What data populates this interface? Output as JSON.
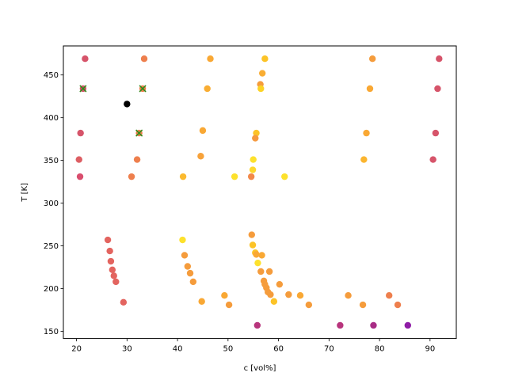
{
  "chart_data": {
    "type": "scatter",
    "title": "",
    "xlabel": "c [vol%]",
    "ylabel": "T [K]",
    "xlim": [
      17.4,
      95.2
    ],
    "ylim": [
      141.6,
      484.0
    ],
    "xticks": [
      20,
      30,
      40,
      50,
      60,
      70,
      80,
      90
    ],
    "yticks": [
      150,
      200,
      250,
      300,
      350,
      400,
      450
    ],
    "grid": false,
    "legend": "none",
    "points": [
      {
        "x": 21.7,
        "y": 469,
        "color": "#d6546a"
      },
      {
        "x": 33.4,
        "y": 469,
        "color": "#ee7f4d"
      },
      {
        "x": 46.5,
        "y": 469,
        "color": "#f9a834"
      },
      {
        "x": 57.3,
        "y": 469,
        "color": "#fcc327"
      },
      {
        "x": 78.6,
        "y": 469,
        "color": "#f59c3c"
      },
      {
        "x": 91.8,
        "y": 469,
        "color": "#d6546a"
      },
      {
        "x": 56.8,
        "y": 452,
        "color": "#f9ad33"
      },
      {
        "x": 21.3,
        "y": 434,
        "color": "#d6546a"
      },
      {
        "x": 33.1,
        "y": 434,
        "color": "#ee7f4d"
      },
      {
        "x": 45.9,
        "y": 434,
        "color": "#f9ad33"
      },
      {
        "x": 56.4,
        "y": 439,
        "color": "#f59c3c"
      },
      {
        "x": 56.5,
        "y": 434,
        "color": "#fcd325"
      },
      {
        "x": 78.1,
        "y": 434,
        "color": "#f9a834"
      },
      {
        "x": 91.5,
        "y": 434,
        "color": "#d6546a"
      },
      {
        "x": 30.0,
        "y": 416,
        "color": "#000000"
      },
      {
        "x": 45.0,
        "y": 385,
        "color": "#f9a834"
      },
      {
        "x": 20.8,
        "y": 382,
        "color": "#d6546a"
      },
      {
        "x": 32.4,
        "y": 382,
        "color": "#ee7f4d"
      },
      {
        "x": 55.6,
        "y": 382,
        "color": "#fcc327"
      },
      {
        "x": 55.4,
        "y": 376,
        "color": "#f5993f"
      },
      {
        "x": 77.4,
        "y": 382,
        "color": "#f9a834"
      },
      {
        "x": 91.1,
        "y": 382,
        "color": "#d6546a"
      },
      {
        "x": 44.6,
        "y": 355,
        "color": "#f7a23a"
      },
      {
        "x": 20.5,
        "y": 351,
        "color": "#dd5e63"
      },
      {
        "x": 32.0,
        "y": 351,
        "color": "#ee7f4d"
      },
      {
        "x": 55.0,
        "y": 351,
        "color": "#fde12c"
      },
      {
        "x": 76.9,
        "y": 351,
        "color": "#fbb52f"
      },
      {
        "x": 90.6,
        "y": 351,
        "color": "#d6546a"
      },
      {
        "x": 54.9,
        "y": 339,
        "color": "#fdd82d"
      },
      {
        "x": 20.7,
        "y": 331,
        "color": "#d94e6e"
      },
      {
        "x": 30.9,
        "y": 331,
        "color": "#ee7f4d"
      },
      {
        "x": 41.1,
        "y": 331,
        "color": "#fbba2f"
      },
      {
        "x": 51.3,
        "y": 331,
        "color": "#fde12c"
      },
      {
        "x": 54.6,
        "y": 331,
        "color": "#f2894a"
      },
      {
        "x": 61.2,
        "y": 331,
        "color": "#fde12c"
      },
      {
        "x": 26.2,
        "y": 257,
        "color": "#e3645f"
      },
      {
        "x": 26.6,
        "y": 244,
        "color": "#e3645f"
      },
      {
        "x": 26.8,
        "y": 232,
        "color": "#e3645f"
      },
      {
        "x": 27.1,
        "y": 222,
        "color": "#e3645f"
      },
      {
        "x": 27.4,
        "y": 215,
        "color": "#e3645f"
      },
      {
        "x": 27.8,
        "y": 208,
        "color": "#e3645f"
      },
      {
        "x": 29.3,
        "y": 184,
        "color": "#e3645f"
      },
      {
        "x": 41.0,
        "y": 257,
        "color": "#fde12c"
      },
      {
        "x": 41.4,
        "y": 239,
        "color": "#f59c3c"
      },
      {
        "x": 42.0,
        "y": 226,
        "color": "#f59c3c"
      },
      {
        "x": 42.5,
        "y": 218,
        "color": "#f59c3c"
      },
      {
        "x": 43.1,
        "y": 208,
        "color": "#f59c3c"
      },
      {
        "x": 44.8,
        "y": 185,
        "color": "#f9a834"
      },
      {
        "x": 49.3,
        "y": 192,
        "color": "#f9a834"
      },
      {
        "x": 50.2,
        "y": 181,
        "color": "#f59c3c"
      },
      {
        "x": 54.7,
        "y": 263,
        "color": "#f59c3c"
      },
      {
        "x": 54.9,
        "y": 251,
        "color": "#fcc327"
      },
      {
        "x": 55.4,
        "y": 242,
        "color": "#fcc327"
      },
      {
        "x": 55.6,
        "y": 240,
        "color": "#f9a834"
      },
      {
        "x": 56.7,
        "y": 239,
        "color": "#f9a834"
      },
      {
        "x": 55.9,
        "y": 230,
        "color": "#fde12c"
      },
      {
        "x": 56.5,
        "y": 220,
        "color": "#f59c3c"
      },
      {
        "x": 58.2,
        "y": 220,
        "color": "#f59c3c"
      },
      {
        "x": 57.1,
        "y": 209,
        "color": "#f59c3c"
      },
      {
        "x": 57.3,
        "y": 205,
        "color": "#f59c3c"
      },
      {
        "x": 57.6,
        "y": 201,
        "color": "#f59c3c"
      },
      {
        "x": 57.9,
        "y": 196,
        "color": "#f59c3c"
      },
      {
        "x": 58.4,
        "y": 193,
        "color": "#f59c3c"
      },
      {
        "x": 59.1,
        "y": 185,
        "color": "#fcc327"
      },
      {
        "x": 60.2,
        "y": 205,
        "color": "#f59c3c"
      },
      {
        "x": 62.0,
        "y": 193,
        "color": "#f59c3c"
      },
      {
        "x": 64.3,
        "y": 192,
        "color": "#f9a834"
      },
      {
        "x": 66.0,
        "y": 181,
        "color": "#f59c3c"
      },
      {
        "x": 73.8,
        "y": 192,
        "color": "#f59c3c"
      },
      {
        "x": 76.7,
        "y": 181,
        "color": "#f59c3c"
      },
      {
        "x": 81.9,
        "y": 192,
        "color": "#ee7f4d"
      },
      {
        "x": 83.6,
        "y": 181,
        "color": "#ee7f4d"
      },
      {
        "x": 55.8,
        "y": 157,
        "color": "#b8357d"
      },
      {
        "x": 72.2,
        "y": 157,
        "color": "#b8357d"
      },
      {
        "x": 78.8,
        "y": 157,
        "color": "#a82c85"
      },
      {
        "x": 85.6,
        "y": 157,
        "color": "#8f1ca6"
      }
    ],
    "markers": [
      {
        "x": 21.3,
        "y": 434,
        "color": "#2e8b1c",
        "symbol": "x"
      },
      {
        "x": 33.1,
        "y": 434,
        "color": "#2e8b1c",
        "symbol": "x"
      },
      {
        "x": 32.4,
        "y": 382,
        "color": "#2e8b1c",
        "symbol": "x"
      }
    ]
  }
}
